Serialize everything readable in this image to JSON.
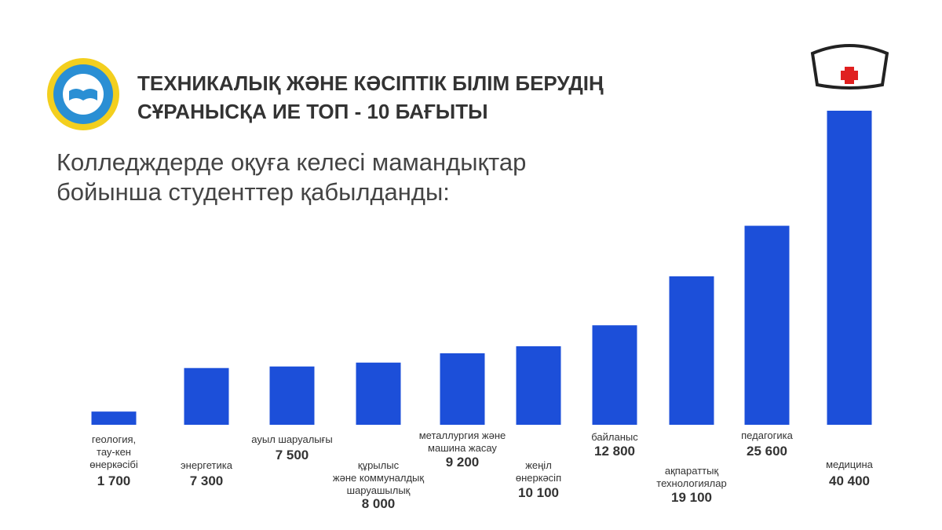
{
  "chart_data": {
    "type": "bar",
    "title": "ТЕХНИКАЛЫҚ ЖӘНЕ КӘСІПТІК БІЛІМ БЕРУДІҢ\nСҰРАНЫСҚА ИЕ ТОП - 10 БАҒЫТЫ",
    "subtitle": "Колледждерде оқуға келесі мамандықтар\nбойынша студенттер қабылданды:",
    "categories": [
      "геология,\nтау-кен\nөнеркәсібі",
      "энергетика",
      "ауыл шаруалығы",
      "құрылыс\nжәне коммуналдық\nшаруашылық",
      "металлургия және\nмашина жасау",
      "жеңіл\nөнеркәсіп",
      "байланыс",
      "ақпараттық\nтехнологиялар",
      "педагогика",
      "медицина"
    ],
    "values": [
      1700,
      7300,
      7500,
      8000,
      9200,
      10100,
      12800,
      19100,
      25600,
      40400
    ],
    "value_labels": [
      "1 700",
      "7 300",
      "7 500",
      "8 000",
      "9 200",
      "10 100",
      "12 800",
      "19 100",
      "25 600",
      "40 400"
    ],
    "color": "#1c4fd9"
  }
}
